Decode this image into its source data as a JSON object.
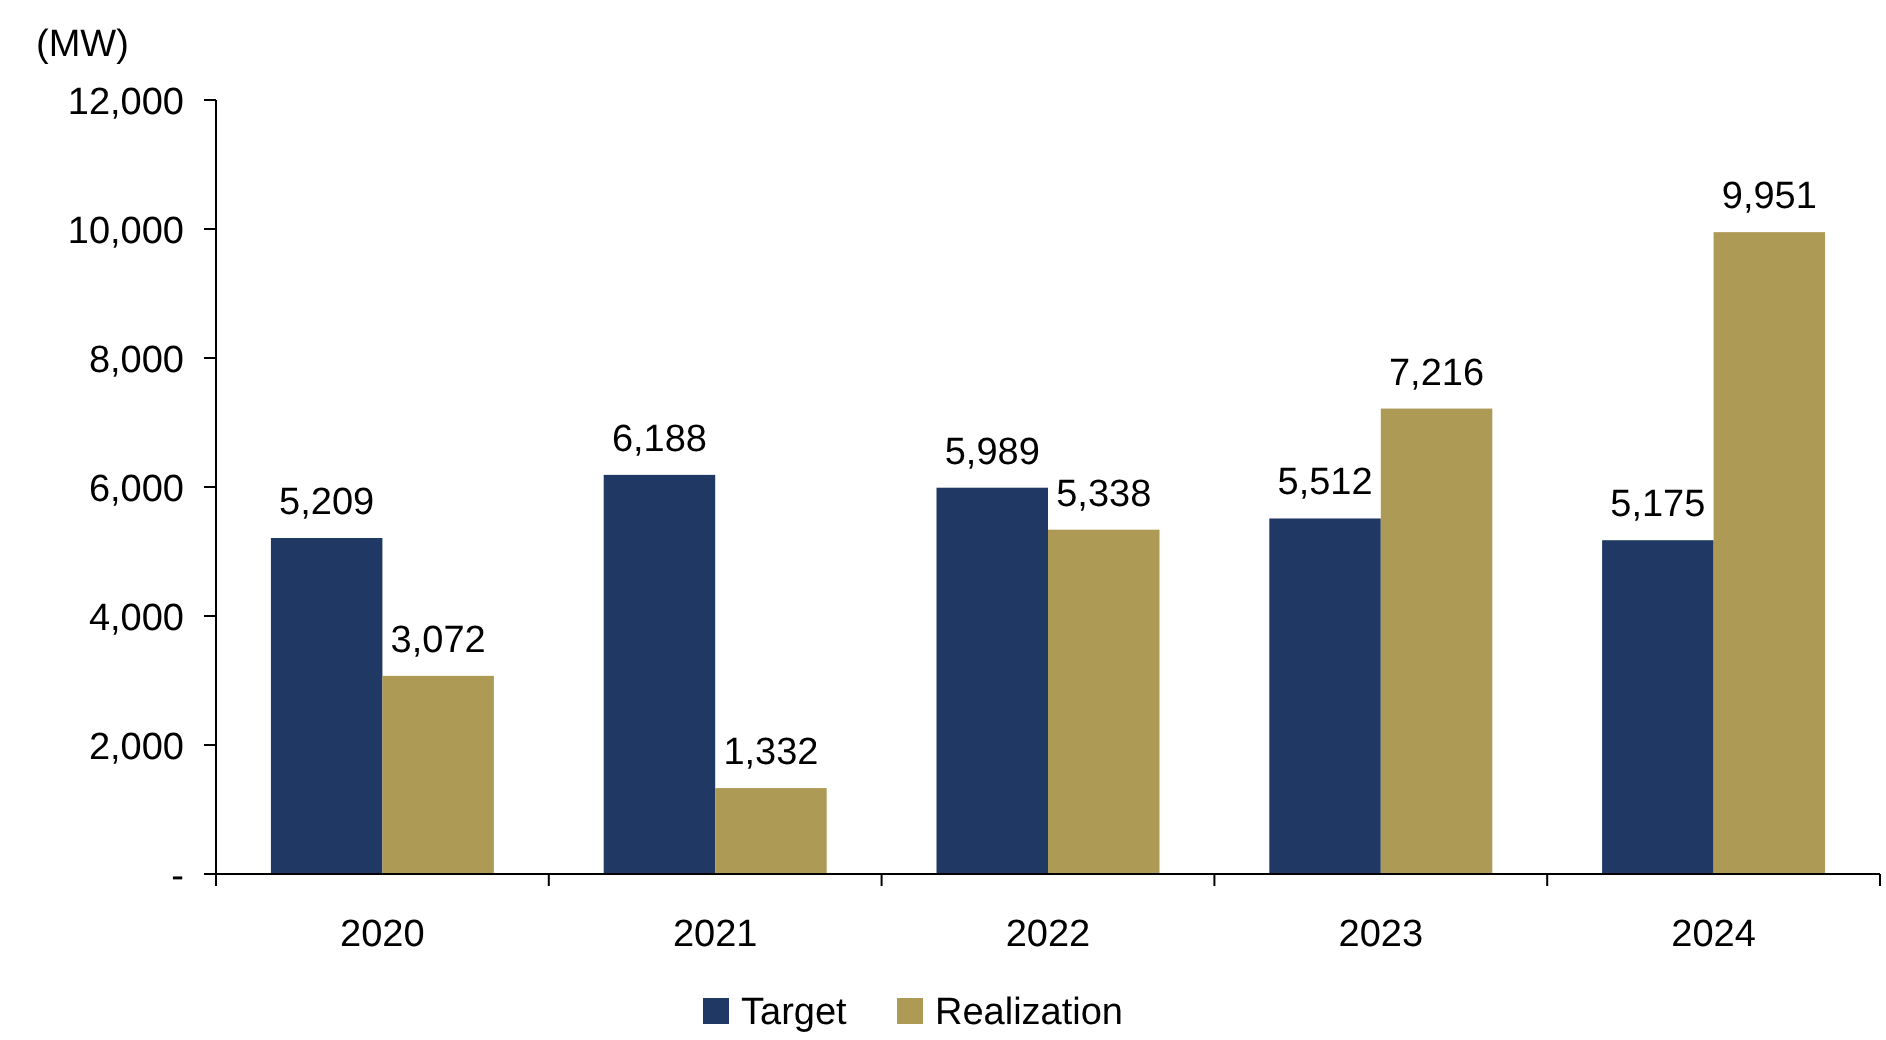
{
  "chart_data": {
    "type": "bar",
    "ylabel": "(MW)",
    "categories": [
      "2020",
      "2021",
      "2022",
      "2023",
      "2024"
    ],
    "series": [
      {
        "name": "Target",
        "color": "#1f3864",
        "values": [
          5209,
          6188,
          5989,
          5512,
          5175
        ],
        "value_labels": [
          "5,209",
          "6,188",
          "5,989",
          "5,512",
          "5,175"
        ]
      },
      {
        "name": "Realization",
        "color": "#ad9a55",
        "values": [
          3072,
          1332,
          5338,
          7216,
          9951
        ],
        "value_labels": [
          "3,072",
          "1,332",
          "5,338",
          "7,216",
          "9,951"
        ]
      }
    ],
    "ylim": [
      0,
      12000
    ],
    "yticks": [
      {
        "value": 0,
        "label": "-"
      },
      {
        "value": 2000,
        "label": "2,000"
      },
      {
        "value": 4000,
        "label": "4,000"
      },
      {
        "value": 6000,
        "label": "6,000"
      },
      {
        "value": 8000,
        "label": "8,000"
      },
      {
        "value": 10000,
        "label": "10,000"
      },
      {
        "value": 12000,
        "label": "12,000"
      }
    ],
    "grid": false,
    "legend": "bottom"
  }
}
